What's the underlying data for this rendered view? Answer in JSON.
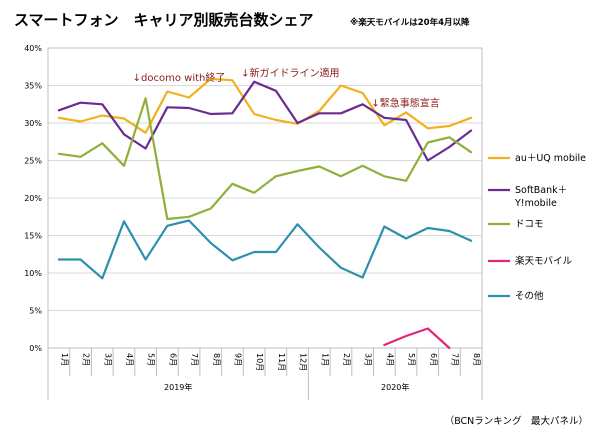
{
  "chart_data": {
    "type": "line",
    "title": "スマートフォン　キャリア別販売台数シェア",
    "note": "※楽天モバイルは20年4月以降",
    "categories": [
      "1月",
      "2月",
      "3月",
      "4月",
      "5月",
      "6月",
      "7月",
      "8月",
      "9月",
      "10月",
      "11月",
      "12月",
      "1月",
      "2月",
      "3月",
      "4月",
      "5月",
      "6月",
      "7月",
      "8月"
    ],
    "year_labels": [
      {
        "label": "2019年",
        "start_index": 0,
        "end_index": 11
      },
      {
        "label": "2020年",
        "start_index": 12,
        "end_index": 19
      }
    ],
    "ylim": [
      0,
      40
    ],
    "yticks": [
      0,
      5,
      10,
      15,
      20,
      25,
      30,
      35,
      40
    ],
    "ytick_labels": [
      "0%",
      "5%",
      "10%",
      "15%",
      "20%",
      "25%",
      "30%",
      "35%",
      "40%"
    ],
    "grid": true,
    "legend_position": "right",
    "series": [
      {
        "name": "au＋UQ mobile",
        "color": "#f2b01e",
        "values": [
          30.7,
          30.2,
          31.0,
          30.6,
          28.7,
          34.2,
          33.4,
          35.9,
          35.7,
          31.2,
          30.4,
          29.9,
          31.6,
          35.0,
          34.0,
          29.7,
          31.4,
          29.3,
          29.6,
          30.7
        ]
      },
      {
        "name": "SoftBank＋\nY!mobile",
        "color": "#6a2c91",
        "values": [
          31.7,
          32.7,
          32.5,
          28.5,
          26.6,
          32.1,
          32.0,
          31.2,
          31.3,
          35.5,
          34.3,
          30.0,
          31.3,
          31.3,
          32.5,
          30.7,
          30.4,
          25.0,
          26.8,
          29.0
        ]
      },
      {
        "name": "ドコモ",
        "color": "#8fb03a",
        "values": [
          25.9,
          25.5,
          27.3,
          24.3,
          33.3,
          17.2,
          17.5,
          18.6,
          21.9,
          20.7,
          22.9,
          23.6,
          24.2,
          22.9,
          24.3,
          22.9,
          22.3,
          27.4,
          28.1,
          26.1
        ]
      },
      {
        "name": "楽天モバイル",
        "color": "#e3257e",
        "values": [
          null,
          null,
          null,
          null,
          null,
          null,
          null,
          null,
          null,
          null,
          null,
          null,
          null,
          null,
          null,
          0.4,
          1.6,
          2.6,
          0.0,
          null
        ]
      },
      {
        "name": "その他",
        "color": "#2e8fae",
        "values": [
          11.8,
          11.8,
          9.3,
          16.9,
          11.8,
          16.3,
          17.0,
          14.0,
          11.7,
          12.8,
          12.8,
          16.5,
          13.4,
          10.7,
          9.4,
          16.2,
          14.6,
          16.0,
          15.6,
          14.3
        ]
      }
    ],
    "annotations": [
      {
        "text": "↓docomo with終了",
        "index": 4,
        "value": 36.0
      },
      {
        "text": "↓新ガイドライン適用",
        "index": 9,
        "value": 36.6
      },
      {
        "text": "↓緊急事態宣言",
        "index": 15,
        "value": 32.6
      }
    ],
    "source": "（BCNランキング　最大パネル）"
  }
}
